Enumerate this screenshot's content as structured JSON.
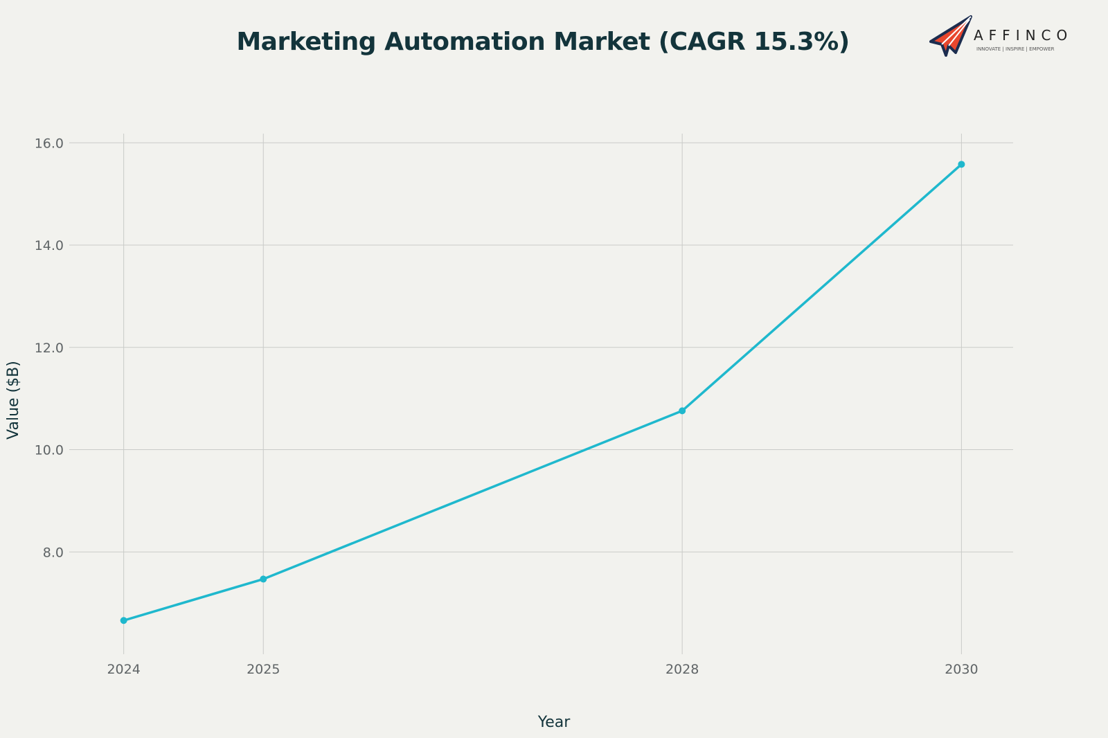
{
  "chart_data": {
    "type": "line",
    "title": "Marketing Automation Market (CAGR 15.3%)",
    "xlabel": "Year",
    "ylabel": "Value ($B)",
    "x": [
      2024,
      2025,
      2028,
      2030
    ],
    "x_tick_labels": [
      "2024",
      "2025",
      "2028",
      "2030"
    ],
    "series": [
      {
        "values": [
          6.66,
          7.47,
          10.76,
          15.58
        ],
        "color": "#1fb8cd"
      }
    ],
    "y_ticks": [
      8.0,
      10.0,
      12.0,
      14.0,
      16.0
    ],
    "y_tick_labels": [
      "8.0",
      "10.0",
      "12.0",
      "14.0",
      "16.0"
    ],
    "ylim": [
      6.0,
      16.18
    ],
    "xlim": [
      2023.61,
      2030.37
    ],
    "grid": true,
    "legend": "none"
  },
  "logo": {
    "name": "AFFINCO",
    "tagline": "INNOVATE | INSPIRE | EMPOWER"
  }
}
